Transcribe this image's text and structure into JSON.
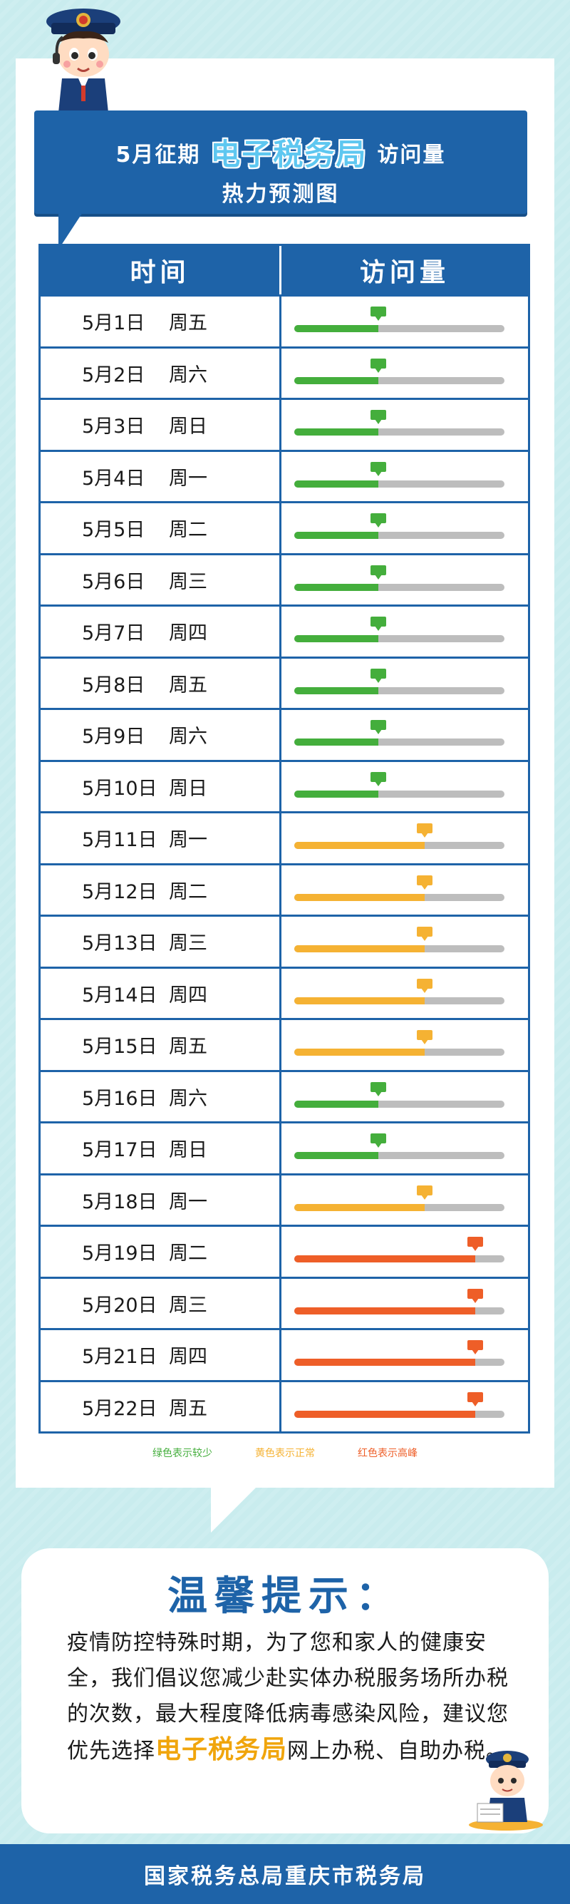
{
  "banner": {
    "prefix": "5月征期",
    "highlight": "电子税务局",
    "suffix": "访问量",
    "line2": "热力预测图"
  },
  "table": {
    "headers": {
      "time": "时间",
      "visits": "访问量"
    },
    "levels": {
      "green": {
        "color": "#44ae3c",
        "fill": 0.4
      },
      "yellow": {
        "color": "#f5b233",
        "fill": 0.62
      },
      "red": {
        "color": "#ee5e28",
        "fill": 0.86
      }
    },
    "rows": [
      {
        "date": "5月1日",
        "weekday": "周五",
        "level": "green"
      },
      {
        "date": "5月2日",
        "weekday": "周六",
        "level": "green"
      },
      {
        "date": "5月3日",
        "weekday": "周日",
        "level": "green"
      },
      {
        "date": "5月4日",
        "weekday": "周一",
        "level": "green"
      },
      {
        "date": "5月5日",
        "weekday": "周二",
        "level": "green"
      },
      {
        "date": "5月6日",
        "weekday": "周三",
        "level": "green"
      },
      {
        "date": "5月7日",
        "weekday": "周四",
        "level": "green"
      },
      {
        "date": "5月8日",
        "weekday": "周五",
        "level": "green"
      },
      {
        "date": "5月9日",
        "weekday": "周六",
        "level": "green"
      },
      {
        "date": "5月10日",
        "weekday": "周日",
        "level": "green"
      },
      {
        "date": "5月11日",
        "weekday": "周一",
        "level": "yellow"
      },
      {
        "date": "5月12日",
        "weekday": "周二",
        "level": "yellow"
      },
      {
        "date": "5月13日",
        "weekday": "周三",
        "level": "yellow"
      },
      {
        "date": "5月14日",
        "weekday": "周四",
        "level": "yellow"
      },
      {
        "date": "5月15日",
        "weekday": "周五",
        "level": "yellow"
      },
      {
        "date": "5月16日",
        "weekday": "周六",
        "level": "green"
      },
      {
        "date": "5月17日",
        "weekday": "周日",
        "level": "green"
      },
      {
        "date": "5月18日",
        "weekday": "周一",
        "level": "yellow"
      },
      {
        "date": "5月19日",
        "weekday": "周二",
        "level": "red"
      },
      {
        "date": "5月20日",
        "weekday": "周三",
        "level": "red"
      },
      {
        "date": "5月21日",
        "weekday": "周四",
        "level": "red"
      },
      {
        "date": "5月22日",
        "weekday": "周五",
        "level": "red"
      }
    ]
  },
  "legend": [
    {
      "label": "绿色表示较少",
      "color": "#44ae3c"
    },
    {
      "label": "黄色表示正常",
      "color": "#f5b233"
    },
    {
      "label": "红色表示高峰",
      "color": "#ee5e28"
    }
  ],
  "tips": {
    "title": "温馨提示：",
    "text_before": "疫情防控特殊时期，为了您和家人的健康安全，我们倡议您减少赴实体办税服务场所办税的次数，最大程度降低病毒感染风险，建议您优先选择",
    "highlight": "电子税务局",
    "text_after": "网上办税、自助办税。"
  },
  "footer": {
    "text": "国家税务总局重庆市税务局"
  },
  "colors": {
    "primary": "#1e63a8",
    "background": "#c9ecee",
    "track": "#bdbdbd"
  }
}
